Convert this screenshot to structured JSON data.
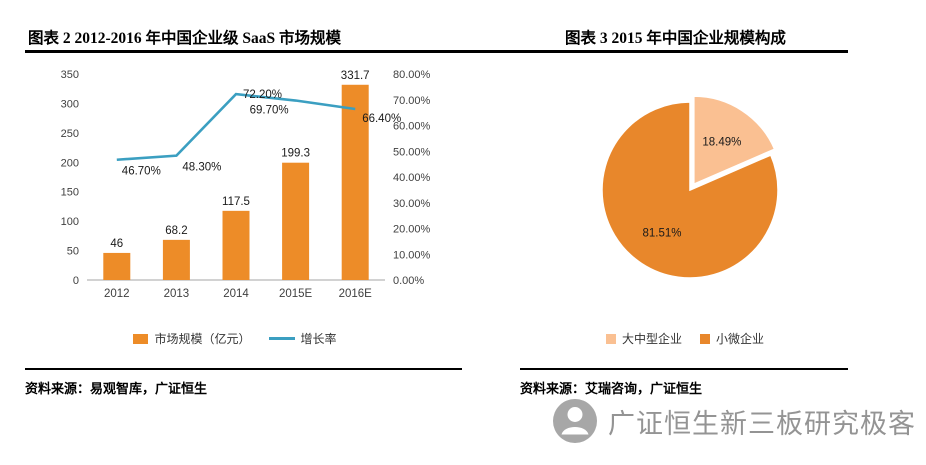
{
  "page": {
    "watermark": "广证恒生新三板研究极客"
  },
  "sources": {
    "left": "资料来源：易观智库，广证恒生",
    "right": "资料来源：艾瑞咨询，广证恒生"
  },
  "colors": {
    "bar": "#ED8C28",
    "line": "#3B9FC1",
    "pie_small": "#FAC092",
    "pie_large": "#E8872B",
    "axis_text": "#404040",
    "watermark_gray": "#949494"
  },
  "chart_data": [
    {
      "type": "bar",
      "title": "图表 2 2012-2016 年中国企业级 SaaS 市场规模",
      "categories": [
        "2012",
        "2013",
        "2014",
        "2015E",
        "2016E"
      ],
      "series": [
        {
          "name": "市场规模（亿元）",
          "type": "bar",
          "axis": "left",
          "values": [
            46,
            68.2,
            117.5,
            199.3,
            331.7
          ],
          "labels": [
            "46",
            "68.2",
            "117.5",
            "199.3",
            "331.7"
          ]
        },
        {
          "name": "增长率",
          "type": "line",
          "axis": "right",
          "values": [
            46.7,
            48.3,
            72.2,
            69.7,
            66.4
          ],
          "labels": [
            "46.70%",
            "48.30%",
            "72.20%",
            "69.70%",
            "66.40%"
          ]
        }
      ],
      "left_axis": {
        "min": 0,
        "max": 350,
        "step": 50,
        "ticks": [
          "0",
          "50",
          "100",
          "150",
          "200",
          "250",
          "300",
          "350"
        ]
      },
      "right_axis": {
        "min": 0,
        "max": 80,
        "step": 10,
        "ticks": [
          "0.00%",
          "10.00%",
          "20.00%",
          "30.00%",
          "40.00%",
          "50.00%",
          "60.00%",
          "70.00%",
          "80.00%"
        ]
      },
      "grid": false,
      "legend_position": "bottom"
    },
    {
      "type": "pie",
      "title": "图表 3 2015 年中国企业规模构成",
      "slices": [
        {
          "label": "大中型企业",
          "value": 18.49,
          "display": "18.49%",
          "color": "#FAC092",
          "explode": true
        },
        {
          "label": "小微企业",
          "value": 81.51,
          "display": "81.51%",
          "color": "#E8872B",
          "explode": false
        }
      ],
      "legend_position": "bottom"
    }
  ]
}
